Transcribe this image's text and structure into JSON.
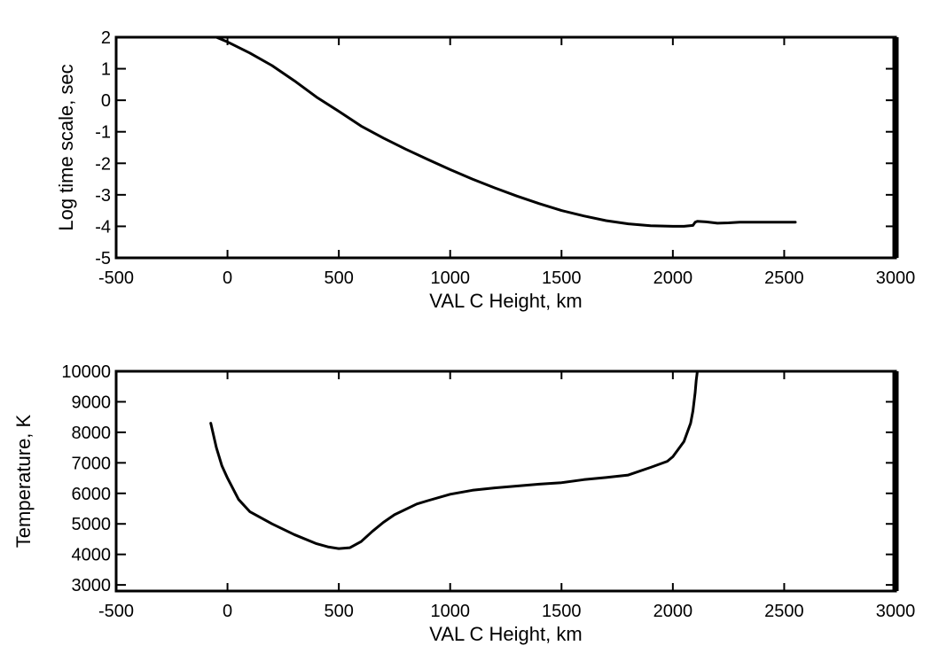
{
  "chart_data": [
    {
      "type": "line",
      "title": "",
      "xlabel": "VAL C Height, km",
      "ylabel": "Log time scale, sec",
      "xlim": [
        -500,
        3000
      ],
      "ylim": [
        -5,
        2
      ],
      "xticks": [
        "-500",
        "0",
        "500",
        "1000",
        "1500",
        "2000",
        "2500",
        "3000"
      ],
      "yticks": [
        "-5",
        "-4",
        "-3",
        "-2",
        "-1",
        "0",
        "1",
        "2"
      ],
      "grid": false,
      "line_color": "#000000",
      "series": [
        {
          "x": [
            -50,
            0,
            100,
            200,
            300,
            400,
            500,
            600,
            700,
            800,
            900,
            1000,
            1100,
            1200,
            1300,
            1400,
            1500,
            1600,
            1700,
            1800,
            1900,
            2000,
            2050,
            2090,
            2100,
            2110,
            2150,
            2200,
            2250,
            2300,
            2400,
            2500,
            2550
          ],
          "y": [
            2.0,
            1.85,
            1.5,
            1.1,
            0.62,
            0.1,
            -0.35,
            -0.82,
            -1.2,
            -1.55,
            -1.88,
            -2.2,
            -2.5,
            -2.78,
            -3.04,
            -3.28,
            -3.5,
            -3.67,
            -3.82,
            -3.92,
            -3.98,
            -4.0,
            -4.0,
            -3.97,
            -3.87,
            -3.84,
            -3.86,
            -3.9,
            -3.89,
            -3.87,
            -3.87,
            -3.87,
            -3.87
          ]
        }
      ]
    },
    {
      "type": "line",
      "title": "",
      "xlabel": "VAL C Height, km",
      "ylabel": "Temperature, K",
      "xlim": [
        -500,
        3000
      ],
      "ylim": [
        2800,
        10000
      ],
      "xticks": [
        "-500",
        "0",
        "500",
        "1000",
        "1500",
        "2000",
        "2500",
        "3000"
      ],
      "yticks": [
        "3000",
        "4000",
        "5000",
        "6000",
        "7000",
        "8000",
        "9000",
        "10000"
      ],
      "grid": false,
      "line_color": "#000000",
      "series": [
        {
          "x": [
            -75,
            -50,
            -25,
            0,
            50,
            100,
            200,
            300,
            400,
            450,
            500,
            550,
            600,
            650,
            700,
            750,
            850,
            900,
            1000,
            1100,
            1200,
            1400,
            1500,
            1600,
            1700,
            1800,
            1900,
            1975,
            2000,
            2050,
            2080,
            2090,
            2100,
            2105,
            2110
          ],
          "y": [
            8300,
            7500,
            6900,
            6500,
            5800,
            5400,
            5000,
            4650,
            4350,
            4250,
            4190,
            4220,
            4420,
            4750,
            5050,
            5300,
            5650,
            5760,
            5970,
            6100,
            6180,
            6300,
            6350,
            6450,
            6520,
            6600,
            6850,
            7050,
            7200,
            7700,
            8300,
            8700,
            9300,
            9700,
            10000
          ]
        }
      ]
    }
  ]
}
